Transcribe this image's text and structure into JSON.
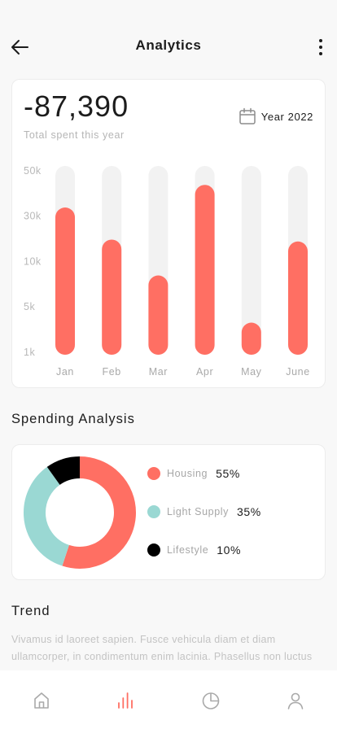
{
  "header": {
    "title": "Analytics"
  },
  "summary": {
    "amount": "-87,390",
    "caption": "Total spent this year",
    "year_label": "Year 2022"
  },
  "chart_data": {
    "type": "bar",
    "categories": [
      "Jan",
      "Feb",
      "Mar",
      "Apr",
      "May",
      "June"
    ],
    "y_ticks": [
      "50k",
      "30k",
      "10k",
      "5k",
      "1k"
    ],
    "values": [
      0.78,
      0.61,
      0.42,
      0.9,
      0.17,
      0.6
    ],
    "value_scale": "fraction of full bar height",
    "bar_color": "#ff6f63",
    "track_color": "#f2f2f2"
  },
  "spending": {
    "title": "Spending Analysis",
    "items": [
      {
        "name": "Housing",
        "percent": "55%",
        "color": "#ff6f63",
        "value": 55
      },
      {
        "name": "Light Supply",
        "percent": "35%",
        "color": "#9ad8d3",
        "value": 35
      },
      {
        "name": "Lifestyle",
        "percent": "10%",
        "color": "#000000",
        "value": 10
      }
    ]
  },
  "trend": {
    "title": "Trend",
    "text": "Vivamus id laoreet sapien. Fusce vehicula diam et diam ullamcorper, in condimentum enim lacinia. Phasellus non luctus nunc."
  },
  "nav": {
    "items": [
      {
        "name": "home",
        "icon": "home-icon",
        "active": false
      },
      {
        "name": "analytics",
        "icon": "bar-chart-icon",
        "active": true
      },
      {
        "name": "reports",
        "icon": "pie-chart-icon",
        "active": false
      },
      {
        "name": "profile",
        "icon": "user-icon",
        "active": false
      }
    ],
    "active_color": "#ff6f63",
    "inactive_color": "#a9a9a9"
  }
}
